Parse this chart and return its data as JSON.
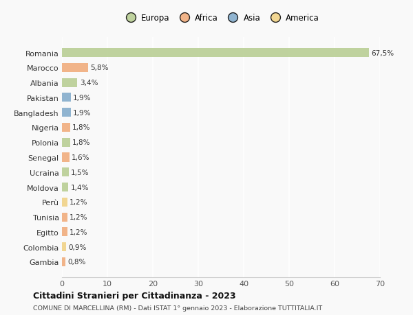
{
  "countries": [
    "Romania",
    "Marocco",
    "Albania",
    "Pakistan",
    "Bangladesh",
    "Nigeria",
    "Polonia",
    "Senegal",
    "Ucraina",
    "Moldova",
    "Perù",
    "Tunisia",
    "Egitto",
    "Colombia",
    "Gambia"
  ],
  "values": [
    67.5,
    5.8,
    3.4,
    1.9,
    1.9,
    1.8,
    1.8,
    1.6,
    1.5,
    1.4,
    1.2,
    1.2,
    1.2,
    0.9,
    0.8
  ],
  "labels": [
    "67,5%",
    "5,8%",
    "3,4%",
    "1,9%",
    "1,9%",
    "1,8%",
    "1,8%",
    "1,6%",
    "1,5%",
    "1,4%",
    "1,2%",
    "1,2%",
    "1,2%",
    "0,9%",
    "0,8%"
  ],
  "continents": [
    "Europa",
    "Africa",
    "Europa",
    "Asia",
    "Asia",
    "Africa",
    "Europa",
    "Africa",
    "Europa",
    "Europa",
    "America",
    "Africa",
    "Africa",
    "America",
    "Africa"
  ],
  "colors": {
    "Europa": "#b5cc8e",
    "Africa": "#f0a875",
    "Asia": "#7ea8c9",
    "America": "#f0d080"
  },
  "legend_order": [
    "Europa",
    "Africa",
    "Asia",
    "America"
  ],
  "xlim": [
    0,
    70
  ],
  "xticks": [
    0,
    10,
    20,
    30,
    40,
    50,
    60,
    70
  ],
  "title": "Cittadini Stranieri per Cittadinanza - 2023",
  "subtitle": "COMUNE DI MARCELLINA (RM) - Dati ISTAT 1° gennaio 2023 - Elaborazione TUTTITALIA.IT",
  "background_color": "#f9f9f9",
  "grid_color": "#ffffff",
  "bar_alpha": 0.85,
  "figsize": [
    6.0,
    4.6
  ],
  "dpi": 100
}
